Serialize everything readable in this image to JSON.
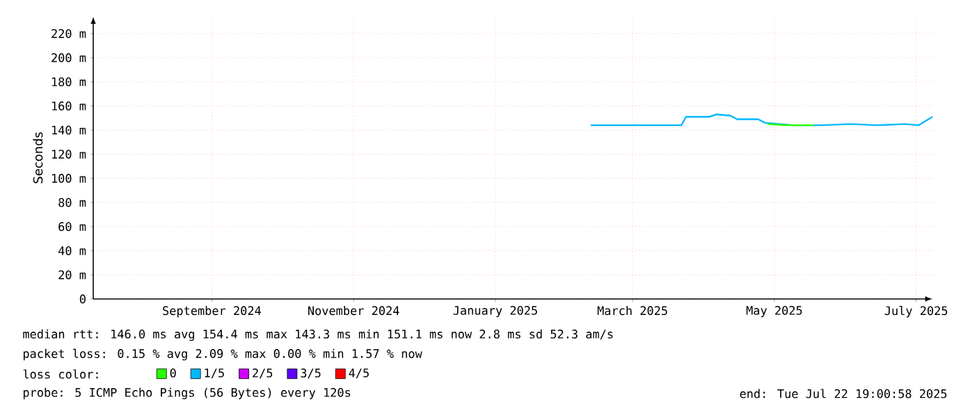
{
  "chart_data": {
    "type": "line",
    "ylabel": "Seconds",
    "xlim": [
      "2024-07-26",
      "2025-07-22"
    ],
    "xticks": [
      {
        "value": "2024-09-15",
        "label": "September 2024"
      },
      {
        "value": "2024-11-15",
        "label": "November 2024"
      },
      {
        "value": "2025-01-15",
        "label": "January 2025"
      },
      {
        "value": "2025-03-15",
        "label": "March 2025"
      },
      {
        "value": "2025-05-15",
        "label": "May 2025"
      },
      {
        "value": "2025-07-15",
        "label": "July 2025"
      }
    ],
    "ylim": [
      0,
      234
    ],
    "yticks": [
      0,
      {
        "value": 20,
        "label": "20 m"
      },
      {
        "value": 40,
        "label": "40 m"
      },
      {
        "value": 60,
        "label": "60 m"
      },
      {
        "value": 80,
        "label": "80 m"
      },
      {
        "value": 100,
        "label": "100 m"
      },
      {
        "value": 120,
        "label": "120 m"
      },
      {
        "value": 140,
        "label": "140 m"
      },
      {
        "value": 160,
        "label": "160 m"
      },
      {
        "value": 180,
        "label": "180 m"
      },
      {
        "value": 200,
        "label": "200 m"
      },
      {
        "value": 220,
        "label": "220 m"
      }
    ],
    "grid": true,
    "legend": "bottom",
    "legend_title": "loss color:",
    "series": [
      {
        "name": "0",
        "color": "#26ff00",
        "x": [
          "2025-05-12",
          "2025-05-20",
          "2025-06-01"
        ],
        "values": [
          145,
          144,
          144
        ]
      },
      {
        "name": "1/5",
        "color": "#00b8ff",
        "x": [
          "2025-02-25",
          "2025-03-15",
          "2025-03-24",
          "2025-04-05",
          "2025-04-07",
          "2025-04-17",
          "2025-04-20",
          "2025-04-26",
          "2025-04-29",
          "2025-05-08",
          "2025-05-11",
          "2025-05-23",
          "2025-06-04",
          "2025-06-17",
          "2025-06-28",
          "2025-07-10",
          "2025-07-16",
          "2025-07-22"
        ],
        "values": [
          144,
          144,
          144,
          144,
          151,
          151,
          153,
          152,
          149,
          149,
          146,
          144,
          144,
          145,
          144,
          145,
          144,
          151
        ]
      },
      {
        "name": "2/5",
        "color": "#cc00ff"
      },
      {
        "name": "3/5",
        "color": "#5e00ff"
      },
      {
        "name": "4/5",
        "color": "#ff0000"
      }
    ],
    "annotations": [
      "median rtt:  146.0 ms avg  154.4 ms max  143.3 ms min  151.1 ms now  2.8 ms sd  52.3   am/s",
      "packet loss: 0.15 % avg  2.09 % max  0.00 % min  1.57 % now",
      "probe:       5 ICMP Echo Pings (56 Bytes) every 120s",
      "end: Tue Jul 22 19:00:58 2025"
    ]
  }
}
